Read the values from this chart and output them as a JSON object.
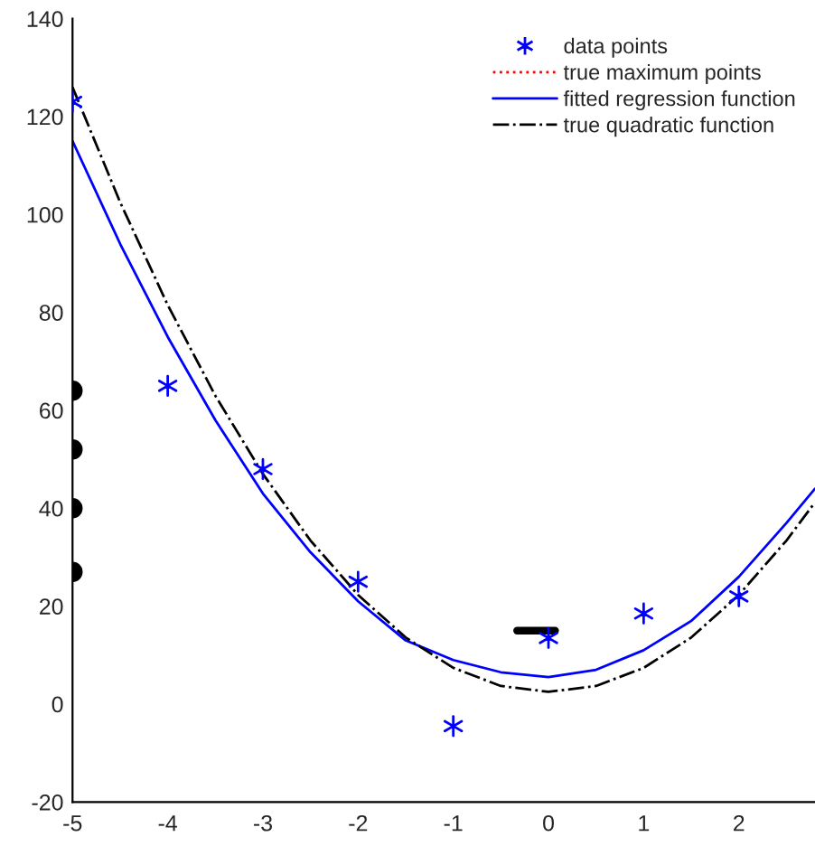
{
  "chart_data": {
    "type": "line",
    "xlim": [
      -5,
      2.8
    ],
    "xticks": [
      -5,
      -4,
      -3,
      -2,
      -1,
      0,
      1,
      2
    ],
    "ylim": [
      -20,
      140
    ],
    "yticks": [
      -20,
      0,
      20,
      40,
      60,
      80,
      100,
      120,
      140
    ],
    "grid": false,
    "legend": "top right",
    "series": [
      {
        "type": "scatter",
        "name": "data points",
        "color": "#0000ff",
        "marker": "cross",
        "x": [
          -5,
          -4,
          -3,
          -2,
          -1,
          0,
          1,
          2
        ],
        "values": [
          123,
          65,
          48,
          25,
          -4.5,
          13.5,
          18.5,
          22
        ]
      },
      {
        "name": "true maximum points",
        "color": "#ff0000",
        "line_style": "dotted"
      },
      {
        "name": "fitted regression function",
        "color": "#0000ff",
        "line_style": "solid",
        "x": [
          -5,
          -4.5,
          -4,
          -3.5,
          -3,
          -2.5,
          -2,
          -1.5,
          -1,
          -0.5,
          0,
          0.5,
          1,
          1.5,
          2,
          2.5,
          2.8
        ],
        "values": [
          115,
          94,
          75,
          58,
          43,
          31,
          21,
          13,
          9,
          6.5,
          5.5,
          7,
          11,
          17,
          26,
          37,
          44
        ]
      },
      {
        "name": "true quadratic function",
        "color": "#000000",
        "line_style": "dashdot",
        "x": [
          -5,
          -4.5,
          -4,
          -3.5,
          -3,
          -2.5,
          -2,
          -1.5,
          -1,
          -0.5,
          0,
          0.5,
          1,
          1.5,
          2,
          2.5,
          2.8
        ],
        "values": [
          126,
          102.5,
          81.5,
          63,
          47,
          33.4,
          22.3,
          13.6,
          7.4,
          3.7,
          2.5,
          3.7,
          7.4,
          13.6,
          22.3,
          33.4,
          41.2
        ]
      },
      {
        "type": "scatter",
        "color": "#000000",
        "marker": "circle",
        "x": [
          -5,
          -5,
          -5,
          -5
        ],
        "values": [
          64,
          52,
          40,
          27
        ]
      },
      {
        "color": "#000000",
        "line_style": "solid",
        "x": [
          -0.33,
          0.07
        ],
        "values": [
          15,
          15
        ]
      }
    ]
  }
}
